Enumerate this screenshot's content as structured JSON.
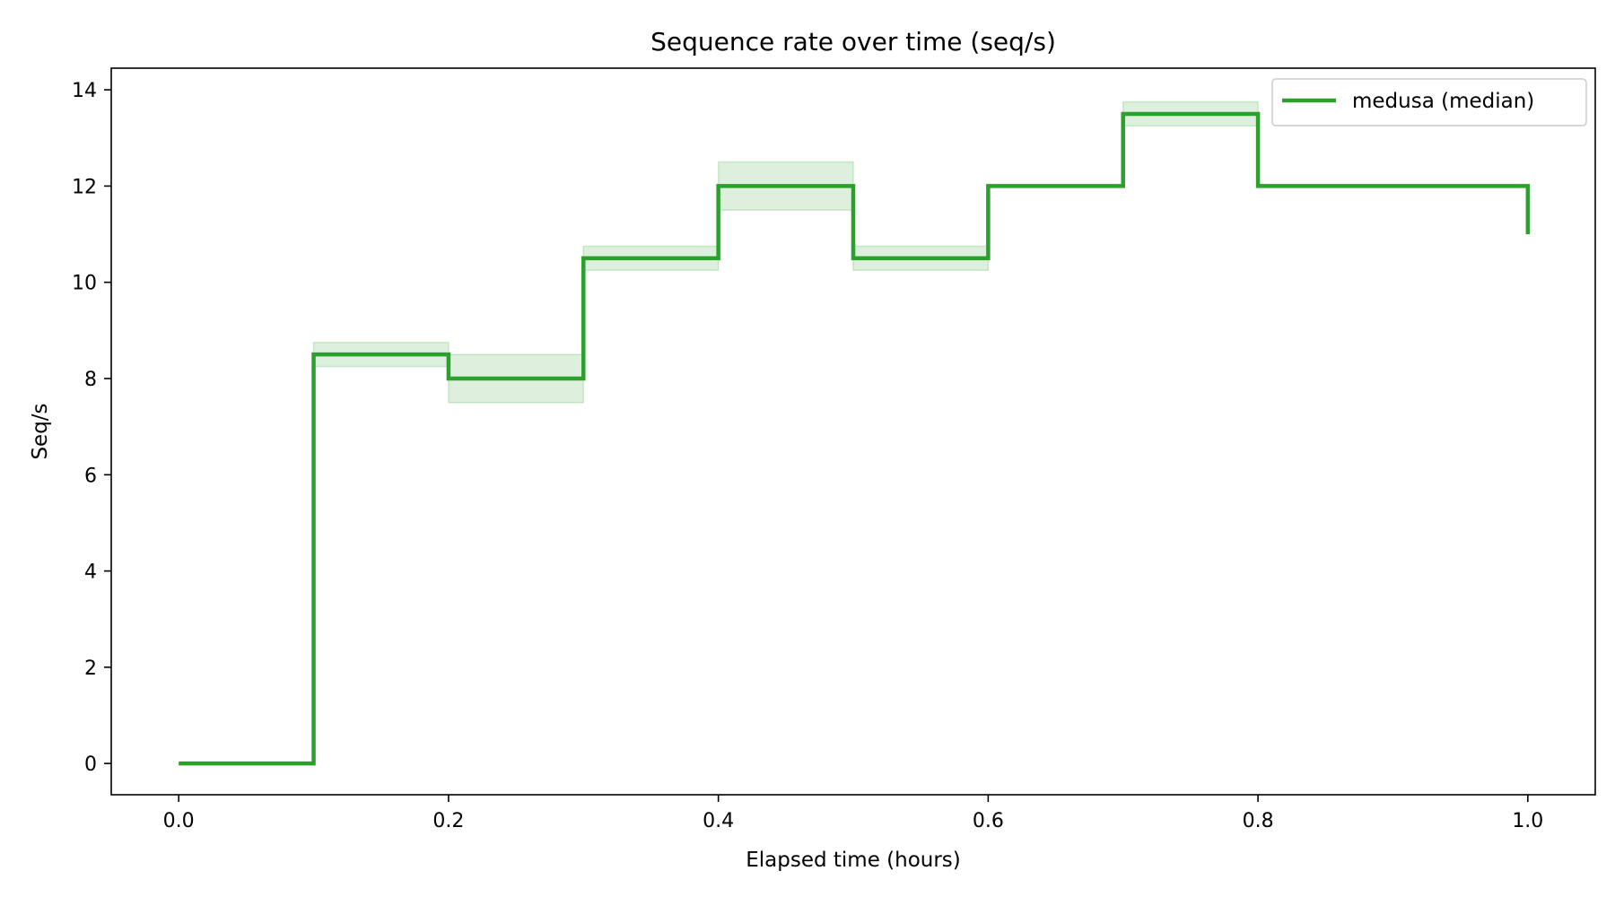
{
  "chart_data": {
    "type": "line",
    "title": "Sequence rate over time (seq/s)",
    "xlabel": "Elapsed time (hours)",
    "ylabel": "Seq/s",
    "xlim": [
      -0.05,
      1.05
    ],
    "ylim": [
      -0.65,
      14.45
    ],
    "xticks": [
      0.0,
      0.2,
      0.4,
      0.6,
      0.8,
      1.0
    ],
    "xtick_labels": [
      "0.0",
      "0.2",
      "0.4",
      "0.6",
      "0.8",
      "1.0"
    ],
    "yticks": [
      0,
      2,
      4,
      6,
      8,
      10,
      12,
      14
    ],
    "ytick_labels": [
      "0",
      "2",
      "4",
      "6",
      "8",
      "10",
      "12",
      "14"
    ],
    "grid": false,
    "legend_position": "top-right",
    "step": "post",
    "series": [
      {
        "name": "medusa (median)",
        "color": "#2ca02c",
        "x": [
          0.0,
          0.1,
          0.2,
          0.3,
          0.4,
          0.5,
          0.6,
          0.7,
          0.8,
          0.9,
          1.0
        ],
        "y": [
          0,
          8.5,
          8,
          10.5,
          12,
          10.5,
          12,
          13.5,
          12,
          12,
          11
        ],
        "band_low": [
          0,
          8.25,
          7.5,
          10.25,
          11.5,
          10.25,
          12,
          13.25,
          12,
          12,
          11
        ],
        "band_high": [
          0,
          8.75,
          8.5,
          10.75,
          12.5,
          10.75,
          12,
          13.75,
          12,
          12,
          11
        ]
      }
    ]
  }
}
